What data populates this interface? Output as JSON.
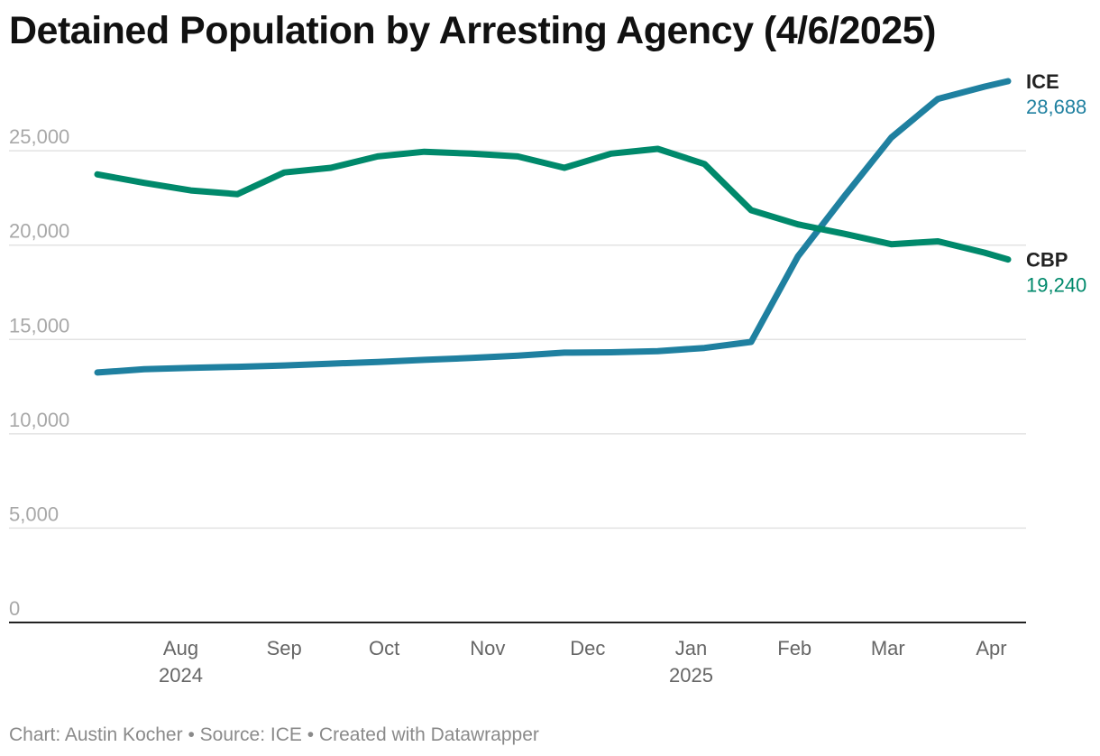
{
  "title": "Detained Population by Arresting Agency (4/6/2025)",
  "footer": {
    "chart": "Chart: Austin Kocher",
    "sep1": "•",
    "source": "Source: ICE",
    "sep2": "•",
    "created": "Created with Datawrapper"
  },
  "colors": {
    "ICE": "#1f80a0",
    "CBP": "#00896b"
  },
  "chart_data": {
    "type": "line",
    "title": "Detained Population by Arresting Agency (4/6/2025)",
    "xlabel": "",
    "ylabel": "",
    "ylim": [
      0,
      28688
    ],
    "yticks": [
      0,
      5000,
      10000,
      15000,
      20000,
      25000
    ],
    "ytick_labels": [
      "0",
      "5,000",
      "10,000",
      "15,000",
      "20,000",
      "25,000"
    ],
    "grid": true,
    "legend": "direct labels at line ends (right)",
    "x": [
      "2024-07-07",
      "2024-07-21",
      "2024-08-04",
      "2024-08-18",
      "2024-09-01",
      "2024-09-15",
      "2024-09-29",
      "2024-10-13",
      "2024-10-27",
      "2024-11-10",
      "2024-11-24",
      "2024-12-08",
      "2024-12-22",
      "2025-01-05",
      "2025-01-19",
      "2025-02-02",
      "2025-02-16",
      "2025-03-02",
      "2025-03-16",
      "2025-03-30",
      "2025-04-06"
    ],
    "xticks": [
      {
        "date": "2024-08-01",
        "label": "Aug",
        "year": "2024"
      },
      {
        "date": "2024-09-01",
        "label": "Sep",
        "year": ""
      },
      {
        "date": "2024-10-01",
        "label": "Oct",
        "year": ""
      },
      {
        "date": "2024-11-01",
        "label": "Nov",
        "year": ""
      },
      {
        "date": "2024-12-01",
        "label": "Dec",
        "year": ""
      },
      {
        "date": "2025-01-01",
        "label": "Jan",
        "year": "2025"
      },
      {
        "date": "2025-02-01",
        "label": "Feb",
        "year": ""
      },
      {
        "date": "2025-03-01",
        "label": "Mar",
        "year": ""
      },
      {
        "date": "2025-04-01",
        "label": "Apr",
        "year": ""
      }
    ],
    "series": [
      {
        "name": "ICE",
        "end_label": "28,688",
        "values": [
          13250,
          13420,
          13500,
          13550,
          13620,
          13720,
          13810,
          13920,
          14020,
          14140,
          14300,
          14320,
          14380,
          14550,
          14870,
          19400,
          22600,
          25700,
          27750,
          28400,
          28688
        ]
      },
      {
        "name": "CBP",
        "end_label": "19,240",
        "values": [
          23750,
          23300,
          22900,
          22700,
          23850,
          24100,
          24700,
          24950,
          24850,
          24700,
          24100,
          24850,
          25100,
          24300,
          21850,
          21100,
          20600,
          20050,
          20200,
          19600,
          19240
        ]
      }
    ]
  }
}
